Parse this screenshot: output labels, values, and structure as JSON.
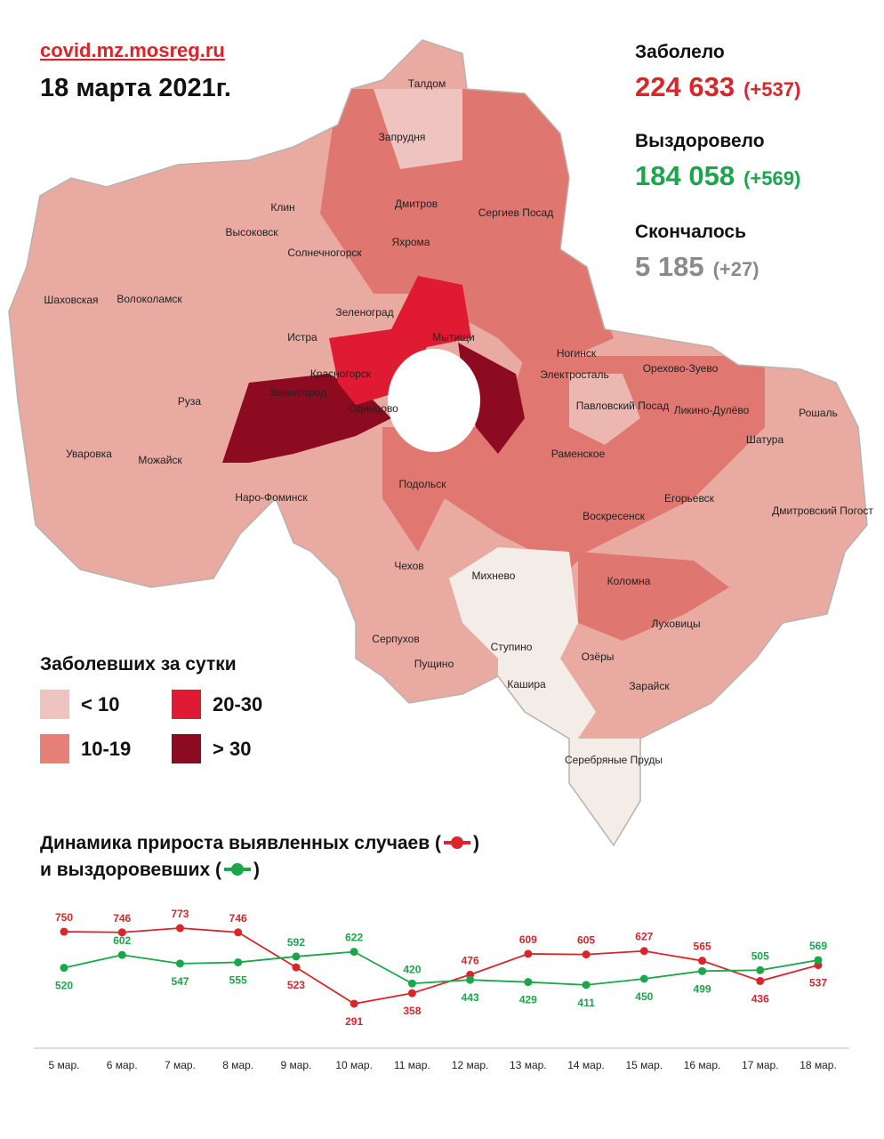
{
  "header": {
    "site": "covid.mz.mosreg.ru",
    "date": "18 марта 2021г."
  },
  "stats": [
    {
      "label": "Заболело",
      "value": "224 633",
      "delta": "(+537)"
    },
    {
      "label": "Выздоровело",
      "value": "184 058",
      "delta": "(+569)"
    },
    {
      "label": "Скончалось",
      "value": "5 185",
      "delta": "(+27)"
    }
  ],
  "legend": {
    "title": "Заболевших за сутки",
    "items": [
      {
        "label": "< 10",
        "color": "#efc3bf"
      },
      {
        "label": "10-19",
        "color": "#e8807a"
      },
      {
        "label": "20-30",
        "color": "#e01a32"
      },
      {
        "label": "> 30",
        "color": "#8c0b20"
      }
    ]
  },
  "map": {
    "labels": [
      "Талдом",
      "Запрудня",
      "Клин",
      "Дмитров",
      "Сергиев Посад",
      "Высоковск",
      "Яхрома",
      "Солнечногорск",
      "Шаховская",
      "Волоколамск",
      "Зеленоград",
      "Истра",
      "Мытищи",
      "Ногинск",
      "Красногорск",
      "Электросталь",
      "Орехово-Зуево",
      "Звенигород",
      "Павловский Посад",
      "Одинцово",
      "Руза",
      "Ликино-Дулёво",
      "Рошаль",
      "Шатура",
      "Уваровка",
      "Можайск",
      "Раменское",
      "Подольск",
      "Наро-Фоминск",
      "Егорьевск",
      "Воскресенск",
      "Дмитровский Погост",
      "Чехов",
      "Михнево",
      "Коломна",
      "Серпухов",
      "Луховицы",
      "Ступино",
      "Пущино",
      "Озёры",
      "Кашира",
      "Зарайск",
      "Серебряные Пруды"
    ]
  },
  "chart_data": {
    "type": "line",
    "title": "Динамика прироста выявленных случаев (",
    "title_end": ")",
    "subtitle": "и выздоровевших (",
    "subtitle_end": ")",
    "categories": [
      "5 мар.",
      "6 мар.",
      "7 мар.",
      "8 мар.",
      "9 мар.",
      "10 мар.",
      "11 мар.",
      "12 мар.",
      "13 мар.",
      "14 мар.",
      "15 мар.",
      "16 мар.",
      "17 мар.",
      "18 мар."
    ],
    "series": [
      {
        "color": "#d8262b",
        "values": [
          750,
          746,
          773,
          746,
          523,
          291,
          358,
          476,
          609,
          605,
          627,
          565,
          436,
          537
        ]
      },
      {
        "color": "#1aa64a",
        "values": [
          520,
          602,
          547,
          555,
          592,
          622,
          420,
          443,
          429,
          411,
          450,
          499,
          505,
          569
        ]
      }
    ]
  }
}
